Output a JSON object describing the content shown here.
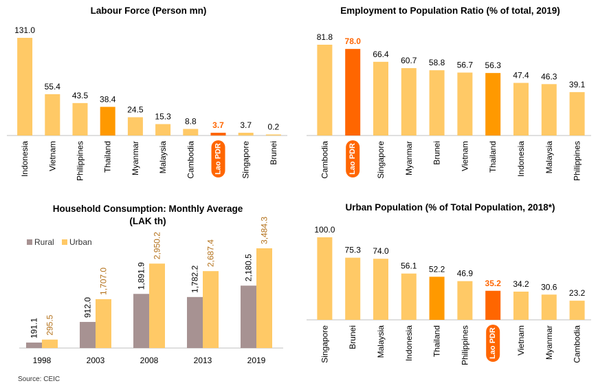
{
  "source": "Source: CEIC",
  "colors": {
    "light": "#FFC966",
    "medium": "#FF9900",
    "highlight": "#FF6600",
    "rural": "#A79292",
    "urban_label": "#B37019"
  },
  "chart_data": [
    {
      "id": "labour",
      "type": "bar",
      "title": "Labour Force (Person mn)",
      "categories": [
        "Indonesia",
        "Vietnam",
        "Philippines",
        "Thailand",
        "Myanmar",
        "Malaysia",
        "Cambodia",
        "Lao PDR",
        "Singapore",
        "Brunei"
      ],
      "values": [
        131.0,
        55.4,
        43.5,
        38.4,
        24.5,
        15.3,
        8.8,
        3.7,
        3.7,
        0.2
      ],
      "value_labels": [
        "131.0",
        "55.4",
        "43.5",
        "38.4",
        "24.5",
        "15.3",
        "8.8",
        "3.7",
        "3.7",
        "0.2"
      ],
      "bar_styles": [
        "light",
        "light",
        "light",
        "medium",
        "light",
        "light",
        "light",
        "highlight",
        "light",
        "light"
      ],
      "highlight_category": "Lao PDR",
      "ylim": [
        0,
        131.0
      ]
    },
    {
      "id": "employment",
      "type": "bar",
      "title": "Employment to Population Ratio (% of total, 2019)",
      "categories": [
        "Cambodia",
        "Lao PDR",
        "Singapore",
        "Myanmar",
        "Brunei",
        "Vietnam",
        "Thailand",
        "Indonesia",
        "Malaysia",
        "Philippines"
      ],
      "values": [
        81.8,
        78.0,
        66.4,
        60.7,
        58.8,
        56.7,
        56.3,
        47.4,
        46.3,
        39.1
      ],
      "value_labels": [
        "81.8",
        "78.0",
        "66.4",
        "60.7",
        "58.8",
        "56.7",
        "56.3",
        "47.4",
        "46.3",
        "39.1"
      ],
      "bar_styles": [
        "light",
        "highlight",
        "light",
        "light",
        "light",
        "light",
        "medium",
        "light",
        "light",
        "light"
      ],
      "highlight_category": "Lao PDR",
      "ylim": [
        0,
        81.8
      ]
    },
    {
      "id": "household",
      "type": "bar",
      "title": "Household Consumption: Monthly Average",
      "subtitle": "(LAK th)",
      "categories": [
        "1998",
        "2003",
        "2008",
        "2013",
        "2019"
      ],
      "legend": "top-left",
      "series": [
        {
          "name": "Rural",
          "values": [
            191.1,
            912.0,
            1891.9,
            1782.2,
            2180.5
          ],
          "value_labels": [
            "191.1",
            "912.0",
            "1,891.9",
            "1,782.2",
            "2,180.5"
          ]
        },
        {
          "name": "Urban",
          "values": [
            295.5,
            1707.0,
            2950.2,
            2687.4,
            3484.3
          ],
          "value_labels": [
            "295.5",
            "1,707.0",
            "2,950.2",
            "2,687.4",
            "3,484.3"
          ]
        }
      ],
      "ylim": [
        0,
        3484.3
      ]
    },
    {
      "id": "urban",
      "type": "bar",
      "title": "Urban Population (% of Total Population, 2018*)",
      "categories": [
        "Singapore",
        "Brunei",
        "Malaysia",
        "Indonesia",
        "Thailand",
        "Philippines",
        "Lao PDR",
        "Vietnam",
        "Myanmar",
        "Cambodia"
      ],
      "values": [
        100.0,
        75.3,
        74.0,
        56.1,
        52.2,
        46.9,
        35.2,
        34.2,
        30.6,
        23.2
      ],
      "value_labels": [
        "100.0",
        "75.3",
        "74.0",
        "56.1",
        "52.2",
        "46.9",
        "35.2",
        "34.2",
        "30.6",
        "23.2"
      ],
      "bar_styles": [
        "light",
        "light",
        "light",
        "light",
        "medium",
        "light",
        "highlight",
        "light",
        "light",
        "light"
      ],
      "highlight_category": "Lao PDR",
      "ylim": [
        0,
        100.0
      ]
    }
  ]
}
